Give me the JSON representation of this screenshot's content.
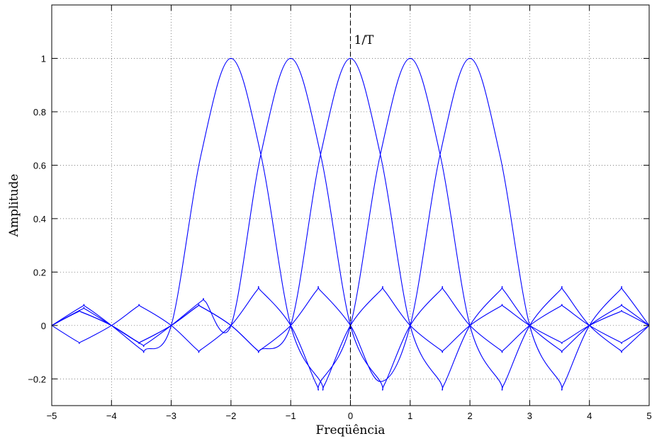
{
  "chart_data": {
    "type": "line",
    "title": "",
    "xlabel": "Freqüência",
    "ylabel": "Amplitude",
    "xlim": [
      -5,
      5
    ],
    "ylim": [
      -0.3,
      1.2
    ],
    "xticks": [
      -5,
      -4,
      -3,
      -2,
      -1,
      0,
      1,
      2,
      3,
      4,
      5
    ],
    "xtick_labels": [
      "−5",
      "−4",
      "−3",
      "−2",
      "−1",
      "0",
      "1",
      "2",
      "3",
      "4",
      "5"
    ],
    "yticks": [
      -0.2,
      0,
      0.2,
      0.4,
      0.6,
      0.8,
      1
    ],
    "ytick_labels": [
      "−0.2",
      "0",
      "0.2",
      "0.4",
      "0.6",
      "0.8",
      "1"
    ],
    "grid": true,
    "line_color": "#0000ff",
    "series": [
      {
        "center": -2,
        "x": [
          -5,
          -4.5,
          -4.43,
          -4,
          -3.5,
          -3.43,
          -3,
          -2.5,
          -2,
          -1.5,
          -1,
          -0.5,
          -0.43,
          0,
          0.5,
          0.57,
          1,
          1.5,
          1.57,
          2,
          2.5,
          2.57,
          3,
          3.5,
          3.57,
          4,
          4.5,
          4.57,
          5
        ],
        "y": [
          0,
          0.07,
          0.07,
          0,
          -0.09,
          -0.09,
          0,
          0.64,
          1,
          0.64,
          0,
          -0.21,
          -0.22,
          0,
          0.13,
          0.13,
          0,
          -0.09,
          -0.09,
          0,
          0.07,
          0.07,
          0,
          -0.06,
          -0.06,
          0,
          0.05,
          0.05,
          0
        ]
      },
      {
        "center": -1,
        "x": [
          -5,
          -4.5,
          -4.43,
          -4,
          -3.5,
          -3.43,
          -3,
          -2.5,
          -2.43,
          -2,
          -1.5,
          -1,
          -0.5,
          0,
          0.5,
          0.57,
          1,
          1.5,
          1.57,
          2,
          2.5,
          2.57,
          3,
          3.5,
          3.57,
          4,
          4.5,
          4.57,
          5
        ],
        "y": [
          0,
          0.06,
          0.06,
          0,
          -0.07,
          -0.07,
          0,
          0.09,
          0.09,
          0,
          0.64,
          1,
          0.64,
          0,
          -0.21,
          -0.22,
          0,
          0.13,
          0.13,
          0,
          -0.09,
          -0.09,
          0,
          0.07,
          0.07,
          0,
          -0.06,
          -0.06,
          0
        ]
      },
      {
        "center": 0,
        "x": [
          -5,
          -4.57,
          -4.5,
          -4,
          -3.57,
          -3.5,
          -3,
          -2.57,
          -2.5,
          -2,
          -1.57,
          -1.5,
          -1,
          -0.5,
          0,
          0.5,
          1,
          1.5,
          1.57,
          2,
          2.5,
          2.57,
          3,
          3.5,
          3.57,
          4,
          4.5,
          4.57,
          5
        ],
        "y": [
          0,
          0.05,
          0.05,
          0,
          -0.06,
          -0.06,
          0,
          0.07,
          0.07,
          0,
          -0.09,
          -0.09,
          0,
          0.64,
          1,
          0.64,
          0,
          -0.21,
          -0.22,
          0,
          0.13,
          0.13,
          0,
          -0.09,
          -0.09,
          0,
          0.07,
          0.07,
          0
        ]
      },
      {
        "center": 1,
        "x": [
          -5,
          -4.57,
          -4.5,
          -4,
          -3.57,
          -3.5,
          -3,
          -2.57,
          -2.5,
          -2,
          -1.57,
          -1.5,
          -1,
          -0.57,
          -0.5,
          0,
          0.5,
          1,
          1.5,
          2,
          2.5,
          2.57,
          3,
          3.5,
          3.57,
          4,
          4.5,
          4.57,
          5
        ],
        "y": [
          0,
          -0.06,
          -0.06,
          0,
          0.07,
          0.07,
          0,
          -0.09,
          -0.09,
          0,
          0.13,
          0.13,
          0,
          -0.22,
          -0.21,
          0,
          0.64,
          1,
          0.64,
          0,
          -0.21,
          -0.22,
          0,
          0.13,
          0.13,
          0,
          -0.09,
          -0.09,
          0
        ]
      },
      {
        "center": 2,
        "x": [
          -5,
          -4.57,
          -4.5,
          -4,
          -3.57,
          -3.5,
          -3,
          -2.57,
          -2.5,
          -2,
          -1.57,
          -1.5,
          -1,
          -0.57,
          -0.5,
          0,
          0.5,
          1,
          1.5,
          2,
          2.5,
          3,
          3.5,
          3.57,
          4,
          4.5,
          4.57,
          5
        ],
        "y": [
          0,
          0.05,
          0.05,
          0,
          -0.06,
          -0.06,
          0,
          0.07,
          0.07,
          0,
          -0.09,
          -0.09,
          0,
          0.13,
          0.13,
          0,
          -0.21,
          0,
          0.64,
          1,
          0.64,
          0,
          -0.21,
          -0.22,
          0,
          0.13,
          0.13,
          0
        ]
      }
    ],
    "vertical_line": {
      "x": 0,
      "style": "dashed",
      "color": "#000000"
    },
    "annotations": [
      {
        "text": "1/T",
        "x": 0,
        "y": 1.07
      }
    ]
  }
}
